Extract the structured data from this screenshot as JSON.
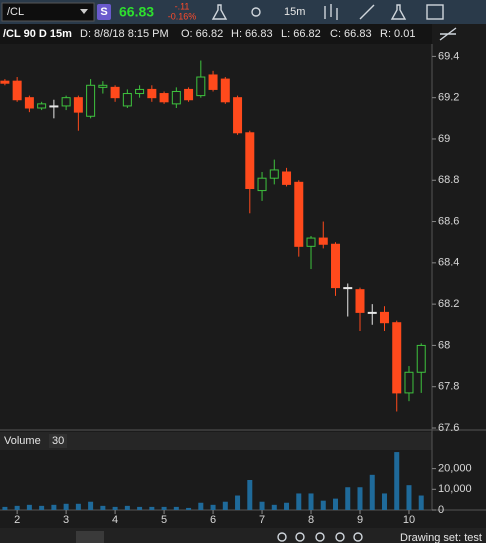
{
  "toolbar": {
    "symbol": "/CL",
    "badge": "S",
    "last": "66.83",
    "net_change": "-.11",
    "percent_change": "-0.16%",
    "aggregation": "15m"
  },
  "header": {
    "symbol": "/CL 90 D 15m",
    "date": "D: 8/8/18 8:15 PM",
    "open": "O: 66.82",
    "high": "H: 66.83",
    "low": "L: 66.82",
    "close": "C: 66.83",
    "range": "R: 0.01"
  },
  "footer": {
    "drawing_set": "Drawing set: test"
  },
  "chart_data": [
    {
      "type": "candlestick",
      "x": [
        1.75,
        2,
        2.25,
        2.5,
        2.75,
        3,
        3.25,
        3.5,
        3.75,
        4,
        4.25,
        4.5,
        4.75,
        5,
        5.25,
        5.5,
        5.75,
        6,
        6.25,
        6.5,
        6.75,
        7,
        7.25,
        7.5,
        7.75,
        8,
        8.25,
        8.5,
        8.75,
        9,
        9.25,
        9.5,
        9.75,
        10,
        10.25
      ],
      "open": [
        69.28,
        69.28,
        69.2,
        69.15,
        69.16,
        69.16,
        69.2,
        69.11,
        69.25,
        69.25,
        69.16,
        69.22,
        69.24,
        69.22,
        69.17,
        69.24,
        69.21,
        69.31,
        69.29,
        69.2,
        69.03,
        68.75,
        68.81,
        68.84,
        68.79,
        68.48,
        68.52,
        68.49,
        68.28,
        68.27,
        68.16,
        68.16,
        68.11,
        67.77,
        67.87
      ],
      "high": [
        69.29,
        69.3,
        69.21,
        69.18,
        69.19,
        69.21,
        69.21,
        69.29,
        69.28,
        69.26,
        69.24,
        69.26,
        69.26,
        69.23,
        69.25,
        69.25,
        69.38,
        69.33,
        69.3,
        69.21,
        69.04,
        68.84,
        68.9,
        68.86,
        68.8,
        68.53,
        68.6,
        68.5,
        68.3,
        68.28,
        68.2,
        68.19,
        68.12,
        67.9,
        68.01
      ],
      "low": [
        69.26,
        69.18,
        69.13,
        69.14,
        69.1,
        69.14,
        69.04,
        69.1,
        69.22,
        69.18,
        69.15,
        69.2,
        69.18,
        69.17,
        69.15,
        69.18,
        69.2,
        69.23,
        69.17,
        69.02,
        68.64,
        68.7,
        68.78,
        68.77,
        68.43,
        68.37,
        68.47,
        68.24,
        68.14,
        68.07,
        68.1,
        68.07,
        67.68,
        67.73,
        67.77
      ],
      "close": [
        69.27,
        69.19,
        69.15,
        69.17,
        69.16,
        69.2,
        69.13,
        69.26,
        69.26,
        69.2,
        69.22,
        69.24,
        69.2,
        69.18,
        69.23,
        69.19,
        69.3,
        69.24,
        69.18,
        69.03,
        68.76,
        68.81,
        68.85,
        68.78,
        68.48,
        68.52,
        68.49,
        68.28,
        68.28,
        68.16,
        68.16,
        68.11,
        67.77,
        67.87,
        68
      ],
      "up_color": "#3ec43e",
      "down_color": "#ff4a1c",
      "flat_color": "#e8e8e8",
      "xlim": [
        1.65,
        10.47
      ],
      "ylim": [
        67.6,
        69.46
      ],
      "yticks": [
        67.6,
        67.8,
        68,
        68.2,
        68.4,
        68.6,
        68.8,
        69,
        69.2,
        69.4
      ]
    },
    {
      "type": "bar",
      "title": "Volume",
      "subtitle": "30",
      "x": [
        1.75,
        2,
        2.25,
        2.5,
        2.75,
        3,
        3.25,
        3.5,
        3.75,
        4,
        4.25,
        4.5,
        4.75,
        5,
        5.25,
        5.5,
        5.75,
        6,
        6.25,
        6.5,
        6.75,
        7,
        7.25,
        7.5,
        7.75,
        8,
        8.25,
        8.5,
        8.75,
        9,
        9.25,
        9.5,
        9.75,
        10,
        10.25
      ],
      "values": [
        1500,
        2000,
        2500,
        2000,
        2500,
        3000,
        3000,
        4000,
        2000,
        1500,
        2000,
        1500,
        1500,
        1500,
        1500,
        1000,
        3500,
        2500,
        4000,
        7000,
        14500,
        4000,
        2500,
        3500,
        8000,
        8000,
        4500,
        5500,
        11000,
        11000,
        17000,
        8000,
        28000,
        12000,
        7000
      ],
      "color": "#1f6a9a",
      "xlim": [
        1.65,
        10.47
      ],
      "xticks": [
        2,
        3,
        4,
        5,
        6,
        7,
        8,
        9,
        10
      ],
      "ylim": [
        0,
        29000
      ],
      "yticks": [
        0,
        {
          "value": 10000,
          "label": "10,000"
        },
        {
          "value": 20000,
          "label": "20,000"
        }
      ]
    }
  ]
}
